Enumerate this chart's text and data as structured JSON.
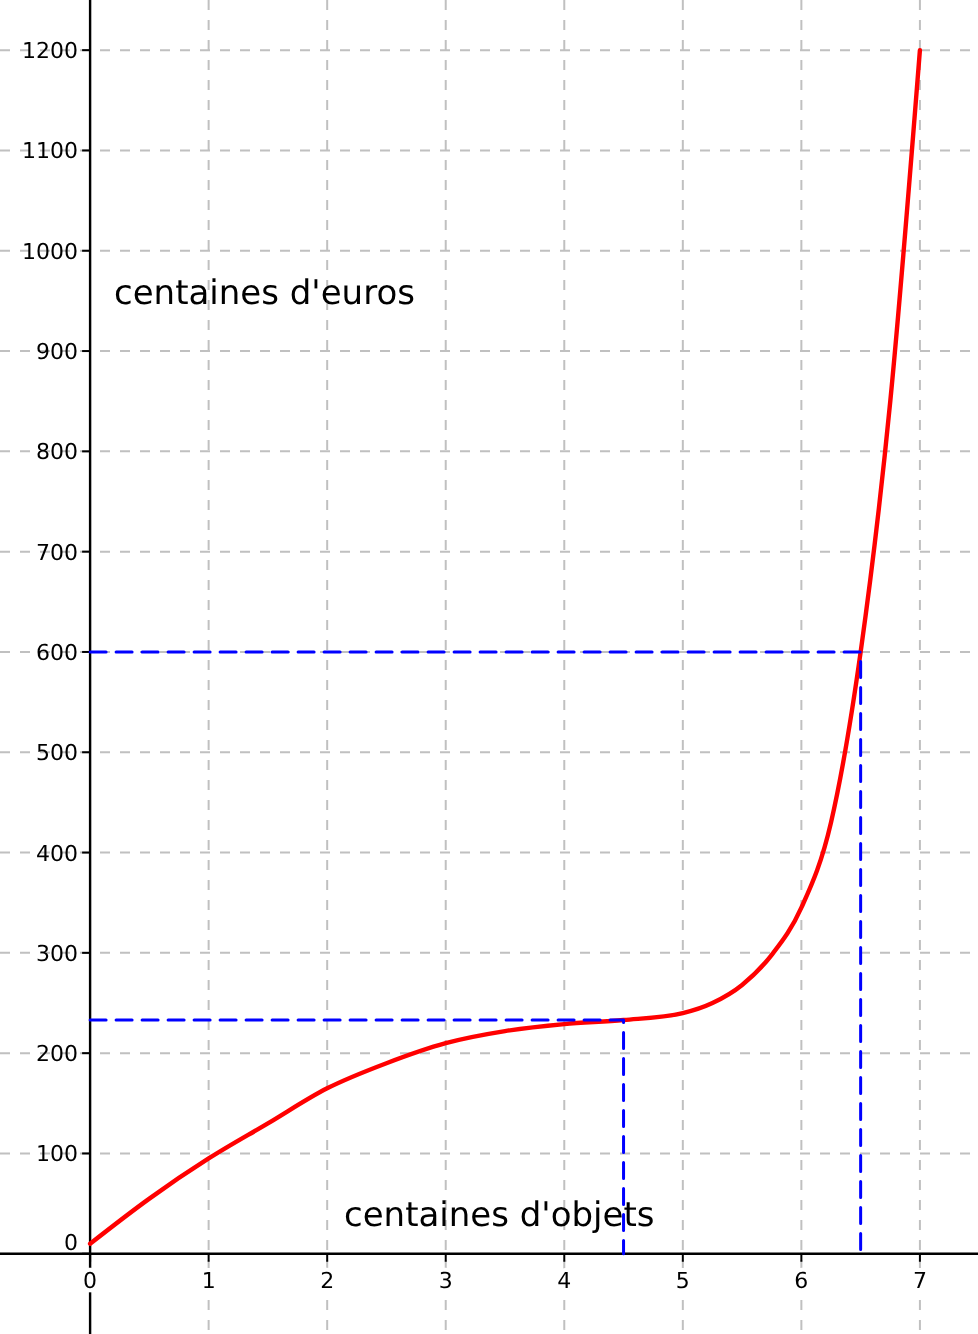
{
  "chart_data": {
    "type": "line",
    "xlabel": "centaines d'objets",
    "ylabel": "centaines d'euros",
    "xlim": [
      -0.76,
      7.49
    ],
    "ylim": [
      -80,
      1250
    ],
    "xticks": [
      0,
      1,
      2,
      3,
      4,
      5,
      6,
      7
    ],
    "yticks": [
      0,
      100,
      200,
      300,
      400,
      500,
      600,
      700,
      800,
      900,
      1000,
      1100,
      1200
    ],
    "grid": true,
    "series": [
      {
        "color": "#ff0000",
        "x": [
          0,
          0.5,
          1,
          1.5,
          2,
          2.5,
          3,
          3.5,
          4,
          4.5,
          5,
          5.25,
          5.5,
          5.75,
          6,
          6.25,
          6.5,
          6.75,
          7
        ],
        "values": [
          10,
          55,
          95,
          130,
          165,
          190,
          210,
          222,
          229,
          233,
          240,
          250,
          268,
          298,
          345,
          430,
          600,
          850,
          1200
        ]
      },
      {
        "color": "#0000ff",
        "line_style": "dashed",
        "x": [
          0,
          4.5,
          4.5
        ],
        "values": [
          233,
          233,
          0
        ]
      },
      {
        "color": "#0000ff",
        "line_style": "dashed",
        "x": [
          0,
          6.5,
          6.5
        ],
        "values": [
          600,
          600,
          0
        ]
      }
    ]
  }
}
